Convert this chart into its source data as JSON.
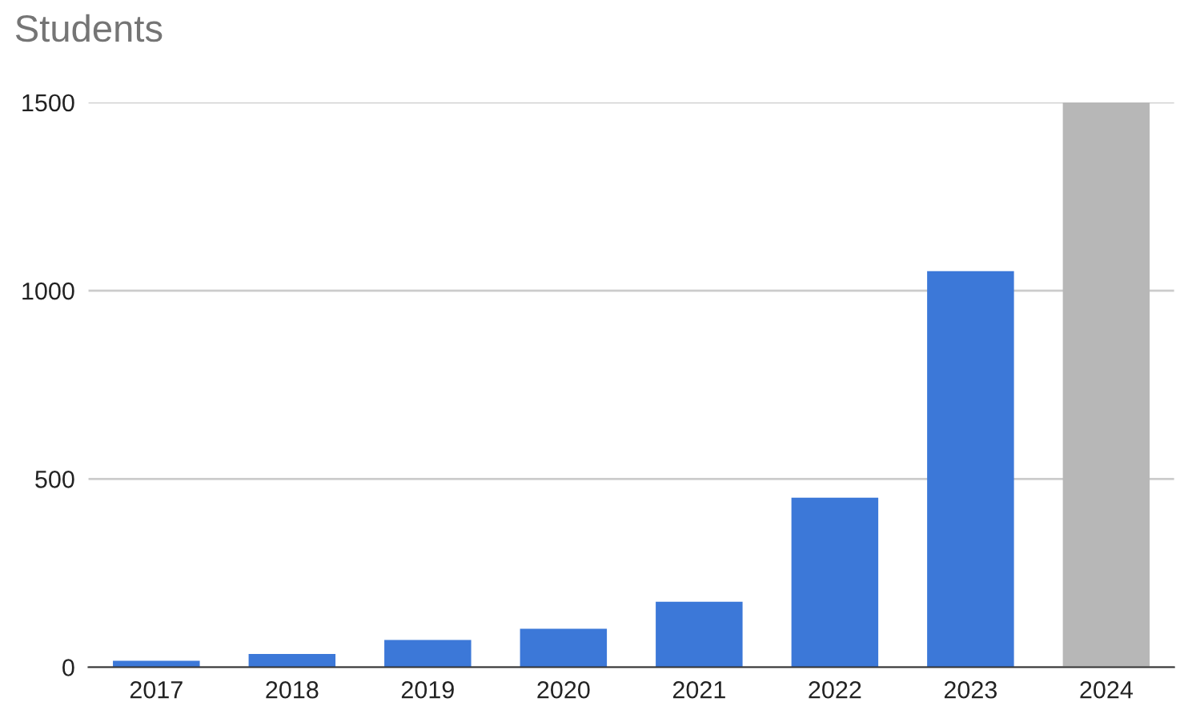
{
  "chart_data": {
    "type": "bar",
    "title": "Students",
    "categories": [
      "2017",
      "2018",
      "2019",
      "2020",
      "2021",
      "2022",
      "2023",
      "2024"
    ],
    "values": [
      17,
      35,
      72,
      102,
      174,
      450,
      1052,
      1500
    ],
    "colors": [
      "#3c78d8",
      "#3c78d8",
      "#3c78d8",
      "#3c78d8",
      "#3c78d8",
      "#3c78d8",
      "#3c78d8",
      "#b7b7b7"
    ],
    "ylim": [
      0,
      1500
    ],
    "yticks": [
      0,
      500,
      1000,
      1500
    ],
    "grid": "y"
  }
}
